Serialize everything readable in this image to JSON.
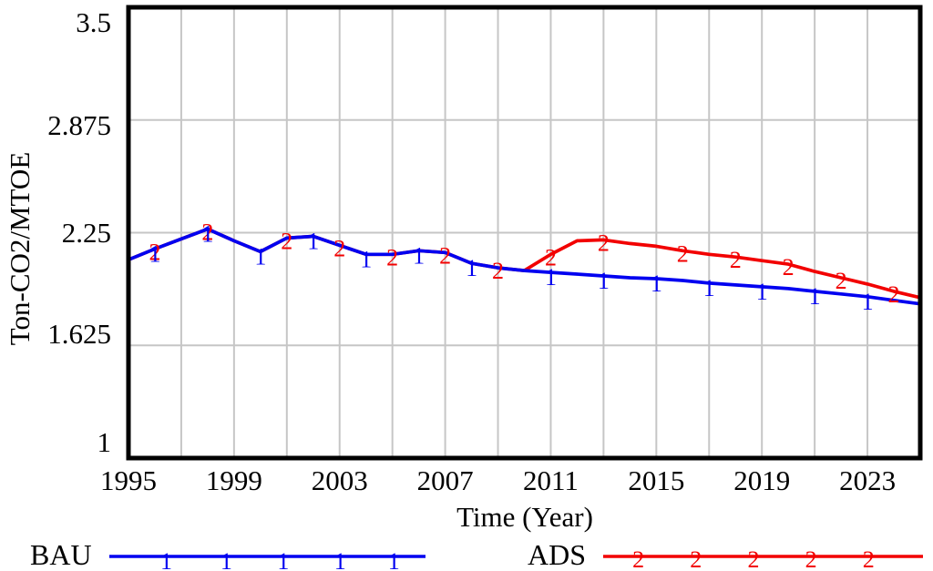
{
  "figure": {
    "background": "#ffffff"
  },
  "chart_data": {
    "type": "line",
    "title": "",
    "xlabel": "Time (Year)",
    "ylabel": "Ton-CO2/MTOE",
    "xlim": [
      1995,
      2025
    ],
    "ylim": [
      1.0,
      3.5
    ],
    "grid": true,
    "grid_color": "#c6c6c6",
    "legend_position": "bottom",
    "x_tick_years": [
      1995,
      1999,
      2003,
      2007,
      2011,
      2015,
      2019,
      2023
    ],
    "y_tick_labels": [
      "3.5",
      "2.875",
      "2.25",
      "1.625",
      "1"
    ],
    "y_tick_values": [
      3.5,
      2.875,
      2.25,
      1.625,
      1.0
    ],
    "grid_years": [
      1997,
      1999,
      2001,
      2003,
      2005,
      2007,
      2009,
      2011,
      2013,
      2015,
      2017,
      2019,
      2021,
      2023
    ],
    "grid_values": [
      1.625,
      2.25,
      2.875
    ],
    "x": [
      1995,
      1996,
      1997,
      1998,
      1999,
      2000,
      2001,
      2002,
      2003,
      2004,
      2005,
      2006,
      2007,
      2008,
      2009,
      2010,
      2011,
      2012,
      2013,
      2014,
      2015,
      2016,
      2017,
      2018,
      2019,
      2020,
      2021,
      2022,
      2023,
      2024,
      2025
    ],
    "series": [
      {
        "name": "BAU",
        "color": "#0000f0",
        "marker": "1",
        "marker_years": [
          1996,
          1998,
          2000,
          2002,
          2004,
          2006,
          2008,
          2011,
          2013,
          2015,
          2017,
          2019,
          2021,
          2023
        ],
        "values": [
          2.1,
          2.16,
          2.215,
          2.27,
          2.205,
          2.145,
          2.22,
          2.23,
          2.18,
          2.13,
          2.13,
          2.15,
          2.14,
          2.08,
          2.055,
          2.04,
          2.03,
          2.02,
          2.01,
          2.0,
          1.995,
          1.985,
          1.97,
          1.96,
          1.95,
          1.94,
          1.925,
          1.91,
          1.895,
          1.875,
          1.855
        ]
      },
      {
        "name": "ADS",
        "color": "#f20000",
        "marker": "2",
        "marker_years": [
          1996,
          1998,
          2001,
          2003,
          2005,
          2007,
          2009,
          2011,
          2013,
          2016,
          2018,
          2020,
          2022,
          2024
        ],
        "values": [
          2.1,
          2.16,
          2.215,
          2.27,
          2.205,
          2.145,
          2.22,
          2.23,
          2.18,
          2.13,
          2.13,
          2.15,
          2.14,
          2.08,
          2.055,
          2.04,
          2.13,
          2.205,
          2.21,
          2.19,
          2.175,
          2.15,
          2.13,
          2.115,
          2.095,
          2.075,
          2.035,
          2.0,
          1.965,
          1.925,
          1.89
        ]
      }
    ]
  }
}
